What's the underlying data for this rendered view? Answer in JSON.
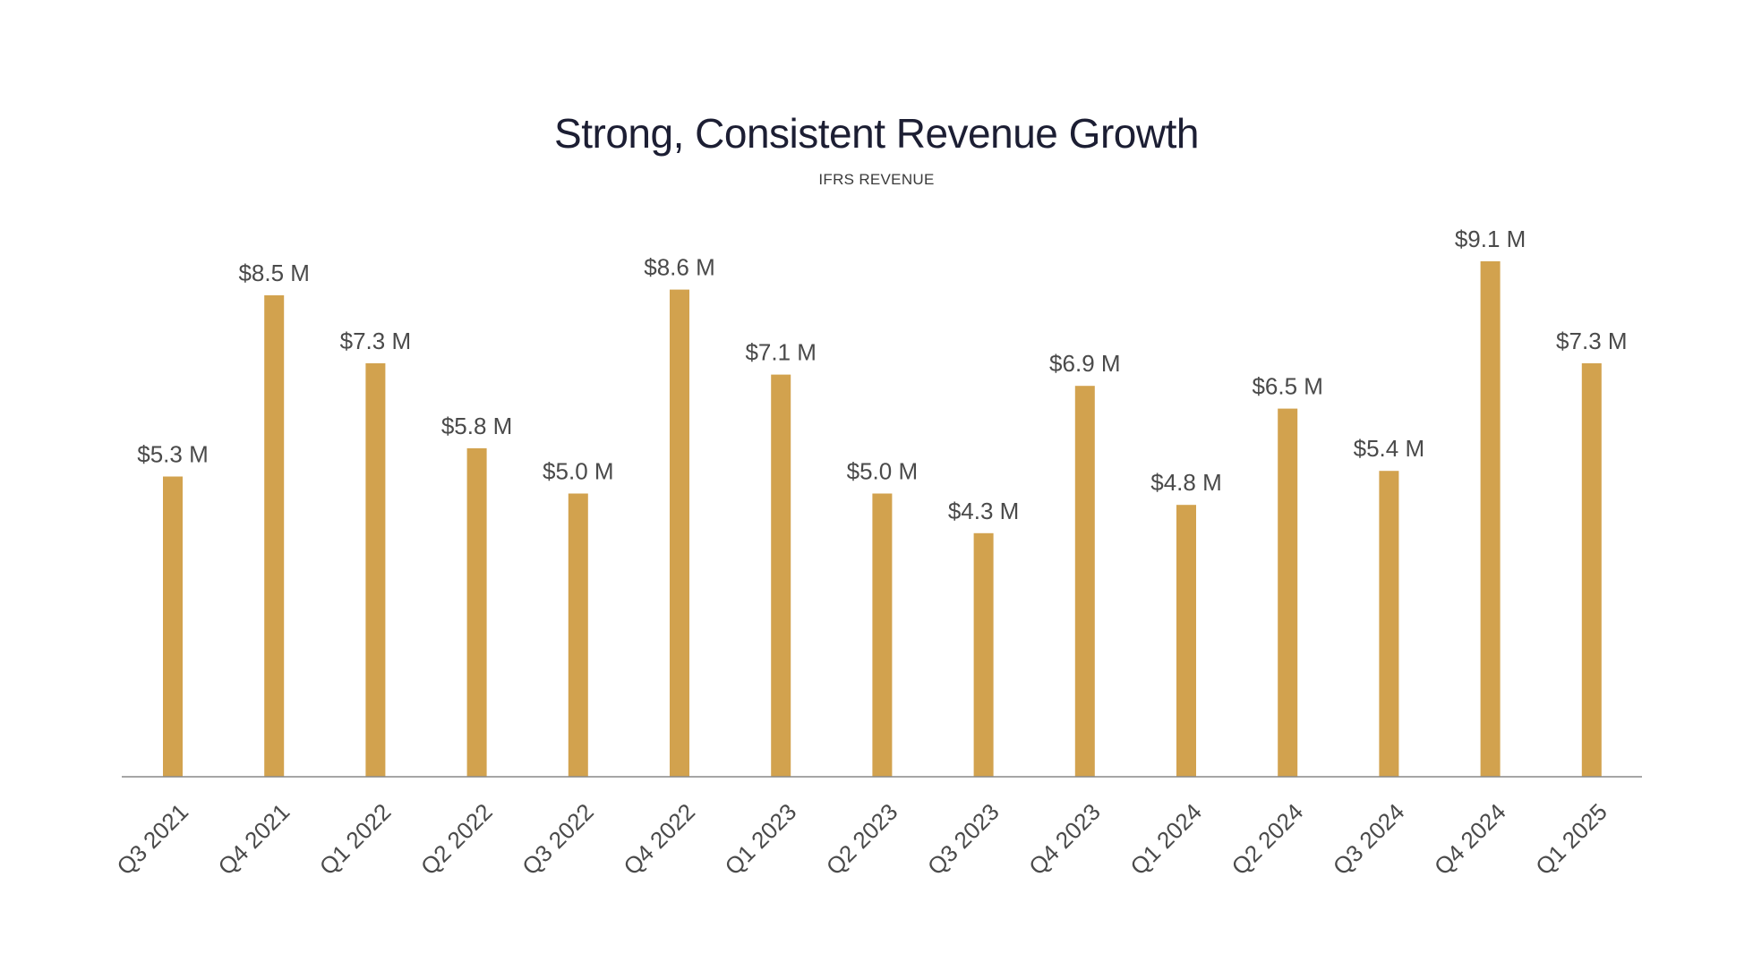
{
  "chart_data": {
    "type": "bar",
    "title": "Strong, Consistent Revenue Growth",
    "subtitle": "IFRS REVENUE",
    "xlabel": "",
    "ylabel": "",
    "ylim": [
      0,
      10
    ],
    "categories": [
      "Q3 2021",
      "Q4 2021",
      "Q1 2022",
      "Q2 2022",
      "Q3 2022",
      "Q4 2022",
      "Q1 2023",
      "Q2 2023",
      "Q3 2023",
      "Q4 2023",
      "Q1 2024",
      "Q2 2024",
      "Q3 2024",
      "Q4 2024",
      "Q1 2025"
    ],
    "values": [
      5.3,
      8.5,
      7.3,
      5.8,
      5.0,
      8.6,
      7.1,
      5.0,
      4.3,
      6.9,
      4.8,
      6.5,
      5.4,
      9.1,
      7.3
    ],
    "labels": [
      "$5.3 M",
      "$8.5 M",
      "$7.3 M",
      "$5.8 M",
      "$5.0 M",
      "$8.6 M",
      "$7.1 M",
      "$5.0 M",
      "$4.3 M",
      "$6.9 M",
      "$4.8 M",
      "$6.5 M",
      "$5.4 M",
      "$9.1 M",
      "$7.3 M"
    ],
    "grid": false,
    "legend": "none",
    "colors": {
      "bar": "#d2a24e",
      "axis": "#888888",
      "title": "#1c1e33",
      "text": "#4a4a4a"
    }
  }
}
